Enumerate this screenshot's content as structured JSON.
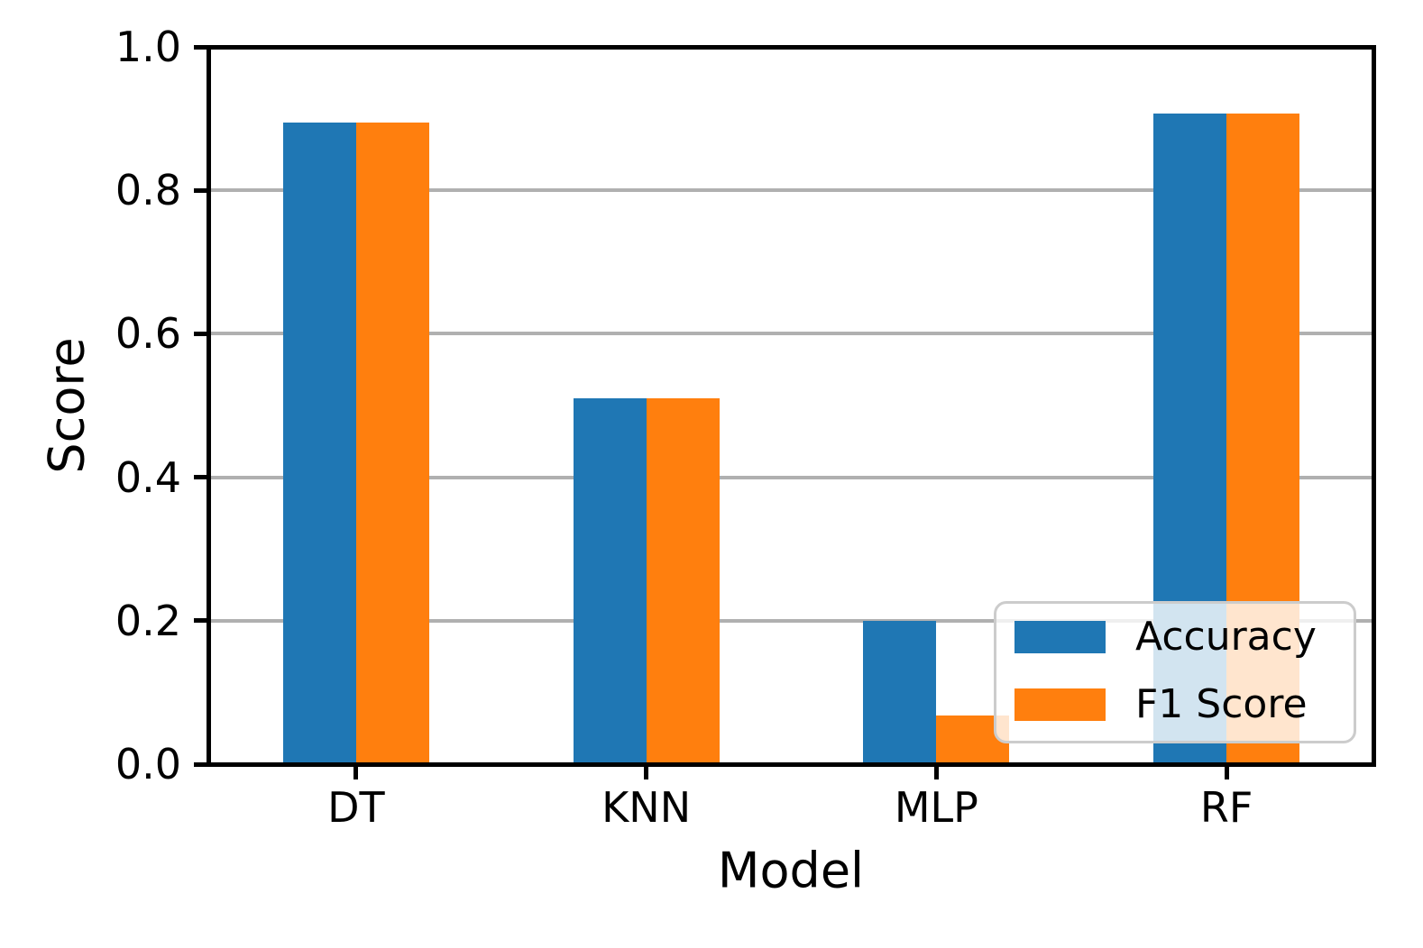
{
  "chart_data": {
    "type": "bar",
    "xlabel": "Model",
    "ylabel": "Score",
    "categories": [
      "DT",
      "KNN",
      "MLP",
      "RF"
    ],
    "series": [
      {
        "name": "Accuracy",
        "color": "#1f77b4",
        "values": [
          0.895,
          0.51,
          0.2,
          0.907
        ]
      },
      {
        "name": "F1 Score",
        "color": "#ff7f0e",
        "values": [
          0.895,
          0.51,
          0.068,
          0.907
        ]
      }
    ],
    "ylim": [
      0.0,
      1.0
    ],
    "yticks": [
      0.0,
      0.2,
      0.4,
      0.6,
      0.8,
      1.0
    ],
    "ytick_labels": [
      "0.0",
      "0.2",
      "0.4",
      "0.6",
      "0.8",
      "1.0"
    ],
    "grid": "horizontal",
    "gridline_color": "#b0b0b0",
    "spine_color": "#000000",
    "legend_position": "lower-right-inside",
    "legend_entries": [
      "Accuracy",
      "F1 Score"
    ]
  }
}
